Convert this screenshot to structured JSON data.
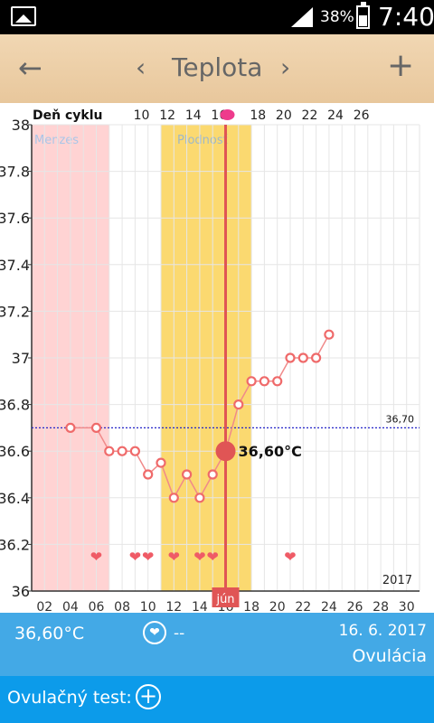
{
  "status": {
    "battery_pct": "38%",
    "time": "7:40"
  },
  "toolbar": {
    "title": "Teplota",
    "back_icon": "←",
    "prev_icon": "‹",
    "next_icon": "›",
    "add_icon": "+"
  },
  "chart_data": {
    "type": "line",
    "top_axis_label": "Deň cyklu",
    "cycle_days": [
      "10",
      "12",
      "14",
      "16",
      "18",
      "20",
      "22",
      "24",
      "26"
    ],
    "x_ticks": [
      "02",
      "04",
      "06",
      "08",
      "10",
      "12",
      "14",
      "16",
      "18",
      "20",
      "22",
      "24",
      "26",
      "28",
      "30"
    ],
    "x_range": [
      1,
      31
    ],
    "y_ticks": [
      "38",
      "37.8",
      "37.6",
      "37.4",
      "37.2",
      "37",
      "36.8",
      "36.6",
      "36.4",
      "36.2",
      "36"
    ],
    "ylim": [
      36,
      38
    ],
    "zones": [
      {
        "label": "Menzes",
        "from": 1,
        "to": 7,
        "color": "#ffd3d3"
      },
      {
        "label": "Plodnosť",
        "from": 11,
        "to": 18,
        "color": "#fbd970"
      }
    ],
    "reference_line": {
      "value": 36.7,
      "label": "36,70"
    },
    "ovulation": {
      "day": 16,
      "month_label": "jún",
      "value": 36.6,
      "value_label": "36,60°C"
    },
    "series": [
      {
        "x": [
          4,
          6,
          7,
          8,
          9,
          10,
          11,
          12,
          13,
          14,
          15,
          16,
          17,
          18,
          19,
          20,
          21,
          22,
          23,
          24
        ],
        "values": [
          36.7,
          36.7,
          36.6,
          36.6,
          36.6,
          36.5,
          36.55,
          36.4,
          36.5,
          36.4,
          36.5,
          36.6,
          36.8,
          36.9,
          36.9,
          36.9,
          37.0,
          37.0,
          37.0,
          37.1
        ]
      }
    ],
    "hearts_days": [
      6,
      9,
      10,
      12,
      14,
      15,
      21
    ],
    "year_label": "2017",
    "line_color": "#f08a8a",
    "ovulation_color": "#e05555"
  },
  "info": {
    "temp": "36,60°C",
    "heart_icon": "❤",
    "dash": "--",
    "date": "16. 6. 2017",
    "phase": "Ovulácia"
  },
  "test": {
    "label": "Ovulačný test:",
    "plus_icon": "+"
  }
}
